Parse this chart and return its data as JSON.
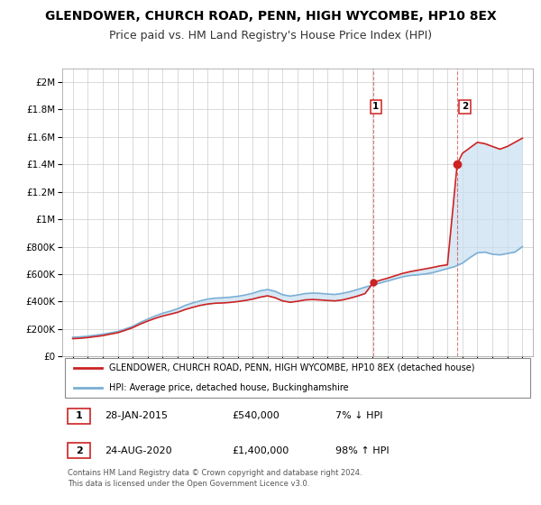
{
  "title": "GLENDOWER, CHURCH ROAD, PENN, HIGH WYCOMBE, HP10 8EX",
  "subtitle": "Price paid vs. HM Land Registry's House Price Index (HPI)",
  "title_fontsize": 10,
  "subtitle_fontsize": 9,
  "background_color": "#ffffff",
  "plot_bg_color": "#ffffff",
  "grid_color": "#cccccc",
  "hpi_line_color": "#7bafd4",
  "price_line_color": "#cc2222",
  "fill_color": "#c8dff0",
  "sale1_x": 2015.07,
  "sale2_x": 2020.65,
  "sale1_price": 540000,
  "sale2_price": 1400000,
  "ylim_max": 2100000,
  "xlim_min": 1994.3,
  "xlim_max": 2025.7,
  "legend_line1": "GLENDOWER, CHURCH ROAD, PENN, HIGH WYCOMBE, HP10 8EX (detached house)",
  "legend_line2": "HPI: Average price, detached house, Buckinghamshire",
  "note1_num": "1",
  "note1_date": "28-JAN-2015",
  "note1_price": "£540,000",
  "note1_hpi": "7% ↓ HPI",
  "note2_num": "2",
  "note2_date": "24-AUG-2020",
  "note2_price": "£1,400,000",
  "note2_hpi": "98% ↑ HPI",
  "copyright": "Contains HM Land Registry data © Crown copyright and database right 2024.\nThis data is licensed under the Open Government Licence v3.0.",
  "hpi_x": [
    1995.0,
    1995.5,
    1996.0,
    1996.5,
    1997.0,
    1997.5,
    1998.0,
    1998.5,
    1999.0,
    1999.5,
    2000.0,
    2000.5,
    2001.0,
    2001.5,
    2002.0,
    2002.5,
    2003.0,
    2003.5,
    2004.0,
    2004.5,
    2005.0,
    2005.5,
    2006.0,
    2006.5,
    2007.0,
    2007.5,
    2008.0,
    2008.5,
    2009.0,
    2009.5,
    2010.0,
    2010.5,
    2011.0,
    2011.5,
    2012.0,
    2012.5,
    2013.0,
    2013.5,
    2014.0,
    2014.5,
    2015.0,
    2015.5,
    2016.0,
    2016.5,
    2017.0,
    2017.5,
    2018.0,
    2018.5,
    2019.0,
    2019.5,
    2020.0,
    2020.5,
    2021.0,
    2021.5,
    2022.0,
    2022.5,
    2023.0,
    2023.5,
    2024.0,
    2024.5,
    2025.0
  ],
  "hpi_y": [
    140000,
    143000,
    148000,
    155000,
    162000,
    172000,
    182000,
    200000,
    220000,
    248000,
    272000,
    295000,
    315000,
    330000,
    348000,
    372000,
    390000,
    405000,
    418000,
    425000,
    428000,
    432000,
    438000,
    448000,
    460000,
    478000,
    488000,
    475000,
    450000,
    440000,
    448000,
    458000,
    462000,
    460000,
    455000,
    452000,
    460000,
    472000,
    488000,
    505000,
    520000,
    535000,
    550000,
    565000,
    580000,
    590000,
    595000,
    600000,
    610000,
    625000,
    640000,
    655000,
    680000,
    720000,
    755000,
    760000,
    745000,
    740000,
    750000,
    760000,
    800000
  ],
  "price_x": [
    1995.0,
    1995.5,
    1996.0,
    1996.5,
    1997.0,
    1997.5,
    1998.0,
    1998.5,
    1999.0,
    1999.5,
    2000.0,
    2000.5,
    2001.0,
    2001.5,
    2002.0,
    2002.5,
    2003.0,
    2003.5,
    2004.0,
    2004.5,
    2005.0,
    2005.5,
    2006.0,
    2006.5,
    2007.0,
    2007.5,
    2008.0,
    2008.5,
    2009.0,
    2009.5,
    2010.0,
    2010.5,
    2011.0,
    2011.5,
    2012.0,
    2012.5,
    2013.0,
    2013.5,
    2014.0,
    2014.5,
    2015.07,
    2015.5,
    2016.0,
    2016.5,
    2017.0,
    2017.5,
    2018.0,
    2018.5,
    2019.0,
    2019.5,
    2020.0,
    2020.65,
    2021.0,
    2021.5,
    2022.0,
    2022.5,
    2023.0,
    2023.5,
    2024.0,
    2024.5,
    2025.0
  ],
  "price_y": [
    130000,
    133000,
    138000,
    145000,
    152000,
    163000,
    173000,
    191000,
    210000,
    236000,
    258000,
    278000,
    295000,
    308000,
    322000,
    342000,
    358000,
    372000,
    382000,
    388000,
    390000,
    394000,
    400000,
    408000,
    418000,
    432000,
    442000,
    428000,
    405000,
    395000,
    402000,
    412000,
    415000,
    412000,
    408000,
    405000,
    412000,
    425000,
    440000,
    458000,
    540000,
    555000,
    570000,
    588000,
    605000,
    618000,
    628000,
    638000,
    648000,
    660000,
    668000,
    1400000,
    1480000,
    1520000,
    1560000,
    1550000,
    1530000,
    1510000,
    1530000,
    1560000,
    1590000
  ]
}
